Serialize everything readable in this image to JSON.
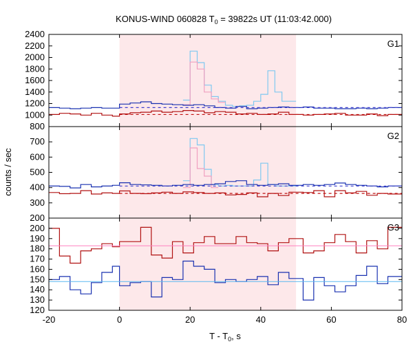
{
  "chart_data": {
    "type": "line",
    "title": {
      "main": "KONUS-WIND 060828 T",
      "sub": "0",
      "rest": " = 39822s UT (11:03:42.000)"
    },
    "xlabel": {
      "main": "T - T",
      "sub": "0",
      "rest": ", s"
    },
    "ylabel": "counts / sec",
    "xlim": [
      -20,
      80
    ],
    "x_ticks": [
      -20,
      0,
      20,
      40,
      60,
      80
    ],
    "highlight_interval": [
      0,
      50
    ],
    "colors": {
      "highlight": "#fde8ea",
      "bg_line": "#7a86ff",
      "sum_step": "#7fc8f0",
      "sum_inner": "#f0a0c0",
      "g3_red_fit": "#ff80c0",
      "g3_blue_fit": "#5ab8f0",
      "dark_red": "#b01010",
      "dark_blue": "#1830b0"
    },
    "panels": [
      {
        "label": "G1",
        "ylim": [
          800,
          2400
        ],
        "yticks": [
          800,
          1000,
          1200,
          1400,
          1600,
          1800,
          2000,
          2200,
          2400
        ],
        "background_levels": [
          {
            "value": 1130,
            "color": "#4040d0",
            "style": "dashed"
          },
          {
            "value": 1010,
            "color": "#c01010",
            "style": "dashed"
          }
        ],
        "series": [
          {
            "kind": "sum",
            "color": "#7fc8f0",
            "edges": [
              18,
              20,
              22,
              24,
              26,
              28,
              30,
              32,
              34,
              36,
              38,
              40,
              42,
              44,
              46,
              48,
              50
            ],
            "values": [
              1260,
              2110,
              1910,
              1520,
              1320,
              1240,
              1170,
              1150,
              1160,
              1170,
              1240,
              1360,
              1770,
              1400,
              1240,
              1240
            ]
          },
          {
            "kind": "sum_inner",
            "color": "#f0a0c0",
            "edges": [
              18,
              20,
              22,
              24,
              26,
              28,
              30
            ],
            "values": [
              1180,
              1920,
              1800,
              1400,
              1280,
              1220
            ]
          },
          {
            "kind": "hist",
            "color": "#1830b0",
            "edges": [
              -20,
              -17,
              -14,
              -11,
              -8,
              -5,
              -2,
              0,
              3,
              6,
              9,
              12,
              15,
              18,
              21,
              24,
              27,
              30,
              33,
              36,
              39,
              42,
              45,
              48,
              52,
              55,
              58,
              61,
              64,
              67,
              70,
              73,
              76,
              80
            ],
            "values": [
              1130,
              1120,
              1110,
              1120,
              1130,
              1120,
              1120,
              1190,
              1210,
              1230,
              1200,
              1190,
              1180,
              1170,
              1180,
              1160,
              1130,
              1120,
              1150,
              1110,
              1120,
              1130,
              1140,
              1130,
              1140,
              1120,
              1120,
              1110,
              1110,
              1120,
              1110,
              1120,
              1130
            ]
          },
          {
            "kind": "hist",
            "color": "#b01010",
            "edges": [
              -20,
              -17,
              -14,
              -11,
              -8,
              -5,
              -2,
              0,
              3,
              6,
              9,
              12,
              15,
              18,
              21,
              24,
              27,
              30,
              33,
              36,
              39,
              42,
              45,
              48,
              52,
              55,
              58,
              61,
              64,
              67,
              70,
              73,
              76,
              80
            ],
            "values": [
              1010,
              1030,
              1020,
              1000,
              1030,
              1000,
              980,
              1020,
              1040,
              1050,
              1070,
              1050,
              1060,
              1080,
              1070,
              1040,
              1060,
              1050,
              1020,
              1030,
              1010,
              1020,
              1050,
              1010,
              1000,
              1010,
              1020,
              1030,
              1000,
              1000,
              1020,
              990,
              1010
            ]
          }
        ]
      },
      {
        "label": "G2",
        "ylim": [
          200,
          800
        ],
        "yticks": [
          200,
          300,
          400,
          500,
          600,
          700
        ],
        "background_levels": [
          {
            "value": 410,
            "color": "#4040d0",
            "style": "dashed"
          },
          {
            "value": 362,
            "color": "#c01010",
            "style": "dashed"
          }
        ],
        "series": [
          {
            "kind": "sum",
            "color": "#7fc8f0",
            "edges": [
              18,
              20,
              22,
              24,
              26,
              28,
              30,
              32,
              34,
              36,
              38,
              40,
              42,
              44,
              46,
              48,
              50
            ],
            "values": [
              445,
              722,
              680,
              520,
              420,
              410,
              415,
              410,
              410,
              410,
              450,
              560,
              420,
              410,
              410,
              410
            ]
          },
          {
            "kind": "sum_inner",
            "color": "#f0a0c0",
            "edges": [
              18,
              20,
              22,
              24,
              26,
              28
            ],
            "values": [
              400,
              660,
              525,
              475,
              400
            ]
          },
          {
            "kind": "hist",
            "color": "#1830b0",
            "edges": [
              -20,
              -17,
              -14,
              -11,
              -8,
              -5,
              -2,
              0,
              3,
              6,
              9,
              12,
              15,
              18,
              21,
              24,
              27,
              30,
              33,
              36,
              39,
              42,
              45,
              48,
              52,
              55,
              58,
              61,
              64,
              67,
              70,
              73,
              76,
              80
            ],
            "values": [
              410,
              408,
              398,
              420,
              405,
              410,
              415,
              432,
              420,
              418,
              415,
              410,
              415,
              420,
              415,
              420,
              425,
              440,
              445,
              420,
              415,
              420,
              425,
              415,
              420,
              415,
              420,
              430,
              420,
              415,
              410,
              405,
              410
            ]
          },
          {
            "kind": "hist",
            "color": "#b01010",
            "edges": [
              -20,
              -17,
              -14,
              -11,
              -8,
              -5,
              -2,
              0,
              3,
              6,
              9,
              12,
              15,
              18,
              21,
              24,
              27,
              30,
              33,
              36,
              39,
              42,
              45,
              48,
              52,
              55,
              58,
              61,
              64,
              67,
              70,
              73,
              76,
              80
            ],
            "values": [
              368,
              360,
              362,
              380,
              358,
              365,
              362,
              378,
              362,
              360,
              365,
              370,
              362,
              372,
              368,
              362,
              365,
              352,
              355,
              365,
              340,
              362,
              348,
              370,
              368,
              380,
              340,
              380,
              365,
              375,
              350,
              362,
              358
            ]
          }
        ]
      },
      {
        "label": "G3",
        "ylim": [
          120,
          210
        ],
        "yticks": [
          120,
          130,
          140,
          150,
          160,
          170,
          180,
          190,
          200
        ],
        "fit_lines": [
          {
            "value": 183,
            "color": "#ff80c0"
          },
          {
            "value": 148,
            "color": "#5ab8f0"
          }
        ],
        "series": [
          {
            "kind": "hist",
            "color": "#b01010",
            "edges": [
              -20,
              -17,
              -14,
              -11,
              -8,
              -5,
              -2,
              0,
              3,
              6,
              9,
              12,
              15,
              18,
              21,
              24,
              27,
              30,
              33,
              36,
              39,
              42,
              45,
              48,
              52,
              55,
              58,
              61,
              64,
              67,
              70,
              73,
              76,
              80
            ],
            "values": [
              200,
              173,
              166,
              178,
              180,
              185,
              182,
              187,
              187,
              201,
              174,
              171,
              187,
              176,
              186,
              192,
              185,
              185,
              192,
              186,
              185,
              178,
              186,
              190,
              176,
              178,
              186,
              194,
              187,
              176,
              188,
              180,
              201
            ]
          },
          {
            "kind": "hist",
            "color": "#1830b0",
            "edges": [
              -20,
              -17,
              -14,
              -11,
              -8,
              -5,
              -2,
              0,
              3,
              6,
              9,
              12,
              15,
              18,
              21,
              24,
              27,
              30,
              33,
              36,
              39,
              42,
              45,
              48,
              52,
              55,
              58,
              61,
              64,
              67,
              70,
              73,
              76,
              80
            ],
            "values": [
              150,
              153,
              140,
              136,
              147,
              157,
              163,
              144,
              147,
              148,
              133,
              152,
              150,
              168,
              163,
              160,
              147,
              150,
              148,
              150,
              153,
              145,
              157,
              151,
              130,
              152,
              144,
              138,
              144,
              154,
              163,
              146,
              153
            ]
          }
        ]
      }
    ]
  }
}
